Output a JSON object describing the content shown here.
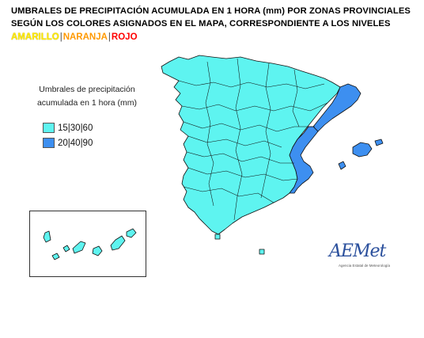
{
  "header": {
    "title_line1": "UMBRALES DE PRECIPITACIÓN ACUMULADA EN 1 HORA (mm) POR ZONAS PROVINCIALES",
    "title_line2": "SEGÚN LOS COLORES ASIGNADOS EN EL MAPA, CORRESPONDIENTE  A  LOS  NIVELES",
    "levels": {
      "yellow": "AMARILLO",
      "orange": "NARANJA",
      "red": "ROJO",
      "separator": "|"
    }
  },
  "legend": {
    "title_line1": "Umbrales de precipitación",
    "title_line2": "acumulada en 1 hora (mm)",
    "items": [
      {
        "label": "15|30|60",
        "color": "#5ef4f0"
      },
      {
        "label": "20|40|90",
        "color": "#3d8ff0"
      }
    ]
  },
  "logo": {
    "text": "AEMet",
    "subtitle": "Agencia Estatal de Meteorología"
  },
  "colors": {
    "border": "#1a1a1a",
    "outline": "#0a0a0a"
  }
}
